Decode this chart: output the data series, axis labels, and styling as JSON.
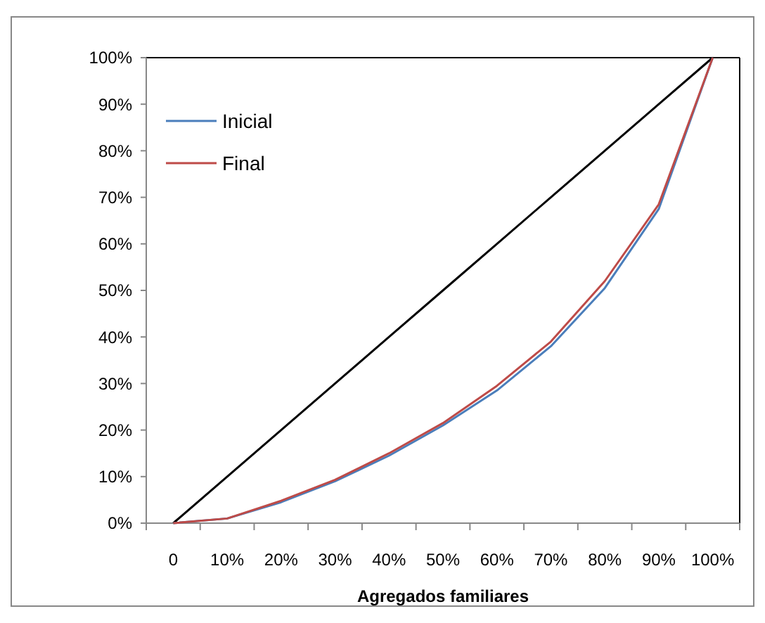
{
  "chart_data": {
    "type": "line",
    "xlabel": "Agregados familiares",
    "categories": [
      "0",
      "10%",
      "20%",
      "30%",
      "40%",
      "50%",
      "60%",
      "70%",
      "80%",
      "90%",
      "100%"
    ],
    "series": [
      {
        "color": "#000000",
        "values": [
          0,
          10,
          20,
          30,
          40,
          50,
          60,
          70,
          80,
          90,
          100
        ]
      },
      {
        "name": "Inicial",
        "color": "#4a7ebb",
        "values": [
          0,
          1,
          4.5,
          9,
          14.5,
          21,
          28.5,
          38,
          50.5,
          67.5,
          100
        ]
      },
      {
        "name": "Final",
        "color": "#be4b48",
        "values": [
          0,
          1,
          4.8,
          9.3,
          15,
          21.5,
          29.5,
          39,
          52,
          68.5,
          100
        ]
      }
    ],
    "ylim": [
      0,
      100
    ],
    "yticks": [
      {
        "value": 0,
        "label": "0%"
      },
      {
        "value": 10,
        "label": "10%"
      },
      {
        "value": 20,
        "label": "20%"
      },
      {
        "value": 30,
        "label": "30%"
      },
      {
        "value": 40,
        "label": "40%"
      },
      {
        "value": 50,
        "label": "50%"
      },
      {
        "value": 60,
        "label": "60%"
      },
      {
        "value": 70,
        "label": "70%"
      },
      {
        "value": 80,
        "label": "80%"
      },
      {
        "value": 90,
        "label": "90%"
      },
      {
        "value": 100,
        "label": "100%"
      }
    ],
    "legend": "top left",
    "grid": false,
    "marker": "none",
    "line_style": "solid"
  }
}
